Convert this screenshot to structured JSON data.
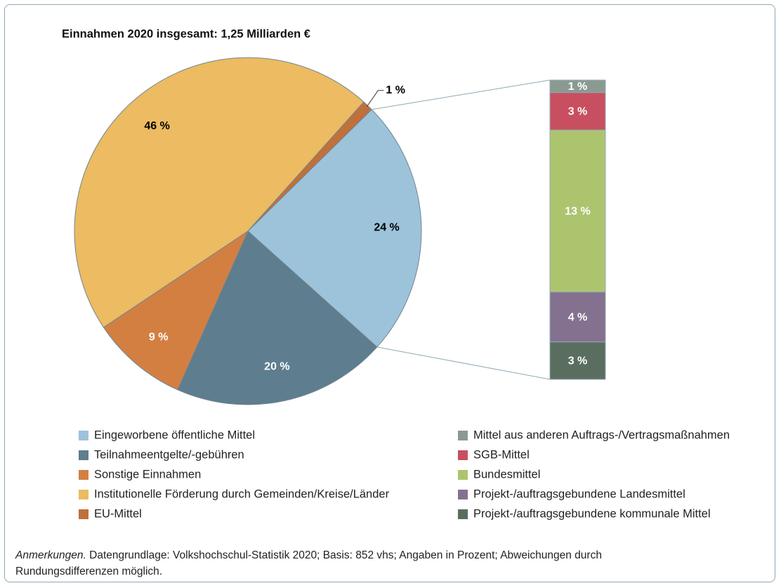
{
  "chart_data": {
    "type": "bar-of-pie",
    "title": "Einnahmen 2020 insgesamt: 1,25 Milliarden €",
    "pie": {
      "categories": [
        "Eingeworbene öffentliche Mittel",
        "Teilnahmeentgelte/-gebühren",
        "Sonstige Einnahmen",
        "Institutionelle Förderung durch Gemeinden/Kreise/Länder",
        "EU-Mittel"
      ],
      "values": [
        24,
        20,
        9,
        46,
        1
      ],
      "value_labels": [
        "24 %",
        "20 %",
        "9 %",
        "46 %",
        "1 %"
      ],
      "colors": [
        "#9dc3da",
        "#5e7d8e",
        "#d47f42",
        "#ecbb62",
        "#c0703a"
      ],
      "label_colors": [
        "#000000",
        "#ffffff",
        "#ffffff",
        "#000000",
        "#000000"
      ]
    },
    "bar": {
      "categories": [
        "Mittel aus anderen Auftrags-/Vertragsmaßnahmen",
        "SGB-Mittel",
        "Bundesmittel",
        "Projekt-/auftragsgebundene Landesmittel",
        "Projekt-/auftragsgebundene kommunale Mittel"
      ],
      "values": [
        1,
        3,
        13,
        4,
        3
      ],
      "value_labels": [
        "1 %",
        "3 %",
        "13 %",
        "4 %",
        "3 %"
      ],
      "colors": [
        "#8a9a91",
        "#c74f60",
        "#adc46f",
        "#84718f",
        "#5a6e60"
      ],
      "label_colors": [
        "#ffffff",
        "#ffffff",
        "#ffffff",
        "#ffffff",
        "#ffffff"
      ]
    },
    "note_label": "Anmerkungen.",
    "note": "Datengrundlage: Volkshochschul-Statistik 2020; Basis: 852 vhs; Angaben in Prozent; Abweichungen durch Rundungsdifferenzen möglich."
  }
}
